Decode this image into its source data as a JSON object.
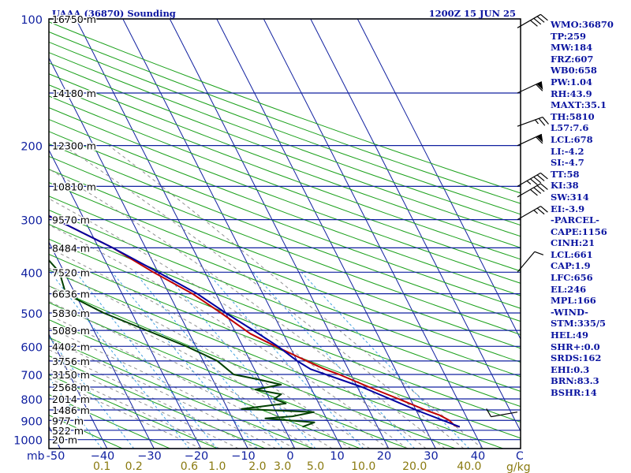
{
  "chart_data": {
    "type": "line",
    "title": "UAAA (36870) Sounding",
    "time_label": "1200Z 15 JUN 25",
    "p_top": 100,
    "p_bottom": 1050,
    "pressure_labels": [
      "100",
      "200",
      "300",
      "400",
      "500",
      "600",
      "700",
      "800",
      "900",
      "1000"
    ],
    "pressure_levels": [
      100,
      200,
      300,
      400,
      500,
      600,
      700,
      800,
      900,
      1000
    ],
    "height_labels": [
      {
        "p": 100,
        "text": "16750 m"
      },
      {
        "p": 150,
        "text": "14180 m"
      },
      {
        "p": 200,
        "text": "12300 m"
      },
      {
        "p": 250,
        "text": "10810 m"
      },
      {
        "p": 300,
        "text": "9570 m"
      },
      {
        "p": 350,
        "text": "8484 m"
      },
      {
        "p": 400,
        "text": "7520 m"
      },
      {
        "p": 450,
        "text": "6636 m"
      },
      {
        "p": 500,
        "text": "5830 m"
      },
      {
        "p": 550,
        "text": "5089 m"
      },
      {
        "p": 600,
        "text": "4402 m"
      },
      {
        "p": 650,
        "text": "3756 m"
      },
      {
        "p": 700,
        "text": "3150 m"
      },
      {
        "p": 750,
        "text": "2568 m"
      },
      {
        "p": 800,
        "text": "2014 m"
      },
      {
        "p": 850,
        "text": "1486 m"
      },
      {
        "p": 900,
        "text": "977 m"
      },
      {
        "p": 950,
        "text": "522 m"
      },
      {
        "p": 1000,
        "text": "20 m"
      }
    ],
    "x_axis_unit": "mb",
    "temp_ticks": [
      {
        "value": -50,
        "text": "-50"
      },
      {
        "value": -40,
        "text": "−40"
      },
      {
        "value": -30,
        "text": "−30"
      },
      {
        "value": -20,
        "text": "−20"
      },
      {
        "value": -10,
        "text": "−10"
      },
      {
        "value": 0,
        "text": "0"
      },
      {
        "value": 10,
        "text": "10"
      },
      {
        "value": 20,
        "text": "20"
      },
      {
        "value": 30,
        "text": "30"
      },
      {
        "value": 40,
        "text": "40"
      }
    ],
    "temp_unit": "C",
    "mixing_ratio_labels": [
      "0.1",
      "0.2",
      "0.6",
      "1.0",
      "2.0",
      "3.0",
      "5.0",
      "10.0",
      "20.0",
      "40.0"
    ],
    "mixing_ratio_values": [
      0.1,
      0.2,
      0.6,
      1.0,
      2.0,
      3.0,
      5.0,
      10.0,
      20.0,
      40.0
    ],
    "mixing_ratio_unit": "g/kg",
    "series": [
      {
        "key": "temperature",
        "color": "#c00000",
        "points": [
          {
            "p": 932,
            "t": 37.5
          },
          {
            "p": 925,
            "t": 36.5
          },
          {
            "p": 900,
            "t": 36.0
          },
          {
            "p": 875,
            "t": 34.5
          },
          {
            "p": 850,
            "t": 32.0
          },
          {
            "p": 800,
            "t": 27.5
          },
          {
            "p": 750,
            "t": 22.5
          },
          {
            "p": 700,
            "t": 17.5
          },
          {
            "p": 680,
            "t": 15.0
          },
          {
            "p": 650,
            "t": 12.0
          },
          {
            "p": 600,
            "t": 7.0
          },
          {
            "p": 560,
            "t": 3.0
          },
          {
            "p": 500,
            "t": -1.0
          },
          {
            "p": 450,
            "t": -5.0
          },
          {
            "p": 400,
            "t": -11.0
          },
          {
            "p": 350,
            "t": -17.0
          },
          {
            "p": 300,
            "t": -26.0
          },
          {
            "p": 270,
            "t": -33.0
          },
          {
            "p": 260,
            "t": -36.0
          },
          {
            "p": 250,
            "t": -35.0
          },
          {
            "p": 225,
            "t": -35.0
          },
          {
            "p": 200,
            "t": -35.0
          },
          {
            "p": 175,
            "t": -39.0
          },
          {
            "p": 150,
            "t": -45.0
          },
          {
            "p": 130,
            "t": -49.0
          },
          {
            "p": 100,
            "t": -61.0
          }
        ]
      },
      {
        "key": "dewpoint",
        "color": "#004000",
        "points": [
          {
            "p": 932,
            "t": 4.0
          },
          {
            "p": 910,
            "t": 7.0
          },
          {
            "p": 890,
            "t": -3.0
          },
          {
            "p": 880,
            "t": 3.0
          },
          {
            "p": 860,
            "t": 8.0
          },
          {
            "p": 845,
            "t": -7.0
          },
          {
            "p": 820,
            "t": 3.0
          },
          {
            "p": 800,
            "t": 1.0
          },
          {
            "p": 780,
            "t": 3.0
          },
          {
            "p": 760,
            "t": -2.0
          },
          {
            "p": 740,
            "t": 4.0
          },
          {
            "p": 720,
            "t": 0.0
          },
          {
            "p": 700,
            "t": -5.0
          },
          {
            "p": 650,
            "t": -7.0
          },
          {
            "p": 600,
            "t": -12.0
          },
          {
            "p": 500,
            "t": -26.0
          },
          {
            "p": 450,
            "t": -32.0
          },
          {
            "p": 400,
            "t": -31.0
          },
          {
            "p": 350,
            "t": -33.0
          },
          {
            "p": 300,
            "t": -46.0
          },
          {
            "p": 270,
            "t": -52.0
          },
          {
            "p": 250,
            "t": -53.0
          },
          {
            "p": 200,
            "t": -55.0
          },
          {
            "p": 150,
            "t": -63.0
          },
          {
            "p": 125,
            "t": -69.0
          },
          {
            "p": 100,
            "t": -80.0
          }
        ]
      },
      {
        "key": "parcel",
        "color": "#0000a0",
        "points": [
          {
            "p": 932,
            "t": 37.5
          },
          {
            "p": 850,
            "t": 30.0
          },
          {
            "p": 750,
            "t": 21.0
          },
          {
            "p": 680,
            "t": 12.0
          },
          {
            "p": 650,
            "t": 10.0
          },
          {
            "p": 600,
            "t": 7.5
          },
          {
            "p": 550,
            "t": 4.0
          },
          {
            "p": 500,
            "t": 0.0
          },
          {
            "p": 450,
            "t": -4.0
          },
          {
            "p": 400,
            "t": -10.0
          },
          {
            "p": 350,
            "t": -17.0
          },
          {
            "p": 300,
            "t": -26.0
          },
          {
            "p": 250,
            "t": -36.0
          },
          {
            "p": 200,
            "t": -50.0
          },
          {
            "p": 150,
            "t": -66.0
          },
          {
            "p": 120,
            "t": -78.0
          }
        ]
      }
    ],
    "wind_barbs": [
      {
        "p": 105,
        "dir": 240,
        "kt": 40
      },
      {
        "p": 150,
        "dir": 245,
        "kt": 60
      },
      {
        "p": 180,
        "dir": 250,
        "kt": 25
      },
      {
        "p": 200,
        "dir": 245,
        "kt": 60
      },
      {
        "p": 250,
        "dir": 240,
        "kt": 45
      },
      {
        "p": 265,
        "dir": 240,
        "kt": 40
      },
      {
        "p": 300,
        "dir": 240,
        "kt": 25
      },
      {
        "p": 400,
        "dir": 220,
        "kt": 10
      },
      {
        "p": 860,
        "dir": 80,
        "kt": 10
      }
    ]
  },
  "station_params": [
    "WMO:36870",
    "TP:259",
    "MW:184",
    "FRZ:607",
    "WB0:658",
    "PW:1.04",
    "RH:43.9",
    "MAXT:35.1",
    "TH:5810",
    "L57:7.6",
    "LCL:678",
    "LI:-4.2",
    "SI:-4.7",
    "TT:58",
    "KI:38",
    "SW:314",
    "EI:-3.9",
    "-PARCEL-",
    "CAPE:1156",
    "CINH:21",
    "LCL:661",
    "CAP:1.9",
    "LFC:656",
    "EL:246",
    "MPL:166",
    "-WIND-",
    "STM:335/5",
    "HEL:49",
    "SHR+:0.0",
    "SRDS:162",
    "EHI:0.3",
    "BRN:83.3",
    "BSHR:14"
  ],
  "colors": {
    "frame": "#000000",
    "isobar": "#1020a0",
    "isotherm": "#1020a0",
    "dry_adiabat": "#1aa01a",
    "moist_adiabat": "#909090",
    "mixing_ratio": "#40a0e0",
    "label_text": "#1020a0",
    "mixing_label_text": "#8a7a10"
  }
}
